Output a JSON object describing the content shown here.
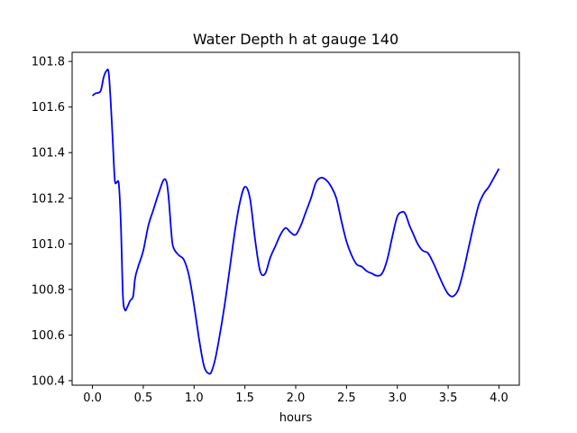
{
  "chart_data": {
    "type": "line",
    "title": "Water Depth h at gauge 140",
    "xlabel": "hours",
    "ylabel": "",
    "xlim": [
      -0.2,
      4.2
    ],
    "ylim": [
      100.38,
      101.84
    ],
    "xticks": [
      "0.0",
      "0.5",
      "1.0",
      "1.5",
      "2.0",
      "2.5",
      "3.0",
      "3.5",
      "4.0"
    ],
    "yticks": [
      "100.4",
      "100.6",
      "100.8",
      "101.0",
      "101.2",
      "101.4",
      "101.6",
      "101.8"
    ],
    "grid": false,
    "line_color": "#0000ff",
    "series": [
      {
        "x": [
          0.0,
          0.03,
          0.08,
          0.11,
          0.14,
          0.16,
          0.18,
          0.2,
          0.22,
          0.24,
          0.26,
          0.28,
          0.3,
          0.32,
          0.34,
          0.37,
          0.4,
          0.42,
          0.45,
          0.5,
          0.55,
          0.6,
          0.65,
          0.7,
          0.73,
          0.75,
          0.78,
          0.8,
          0.85,
          0.9,
          0.95,
          1.0,
          1.05,
          1.1,
          1.15,
          1.18,
          1.22,
          1.3,
          1.4,
          1.45,
          1.5,
          1.55,
          1.6,
          1.65,
          1.7,
          1.75,
          1.8,
          1.85,
          1.9,
          1.95,
          2.0,
          2.05,
          2.1,
          2.15,
          2.2,
          2.25,
          2.3,
          2.35,
          2.4,
          2.45,
          2.5,
          2.55,
          2.6,
          2.65,
          2.7,
          2.75,
          2.8,
          2.85,
          2.9,
          2.95,
          3.0,
          3.05,
          3.08,
          3.12,
          3.15,
          3.2,
          3.25,
          3.3,
          3.35,
          3.4,
          3.45,
          3.5,
          3.55,
          3.6,
          3.65,
          3.7,
          3.75,
          3.8,
          3.85,
          3.9,
          3.95,
          4.0
        ],
        "y": [
          101.65,
          101.66,
          101.67,
          101.73,
          101.76,
          101.75,
          101.62,
          101.45,
          101.28,
          101.27,
          101.26,
          101.08,
          100.77,
          100.71,
          100.72,
          100.75,
          100.77,
          100.85,
          100.9,
          100.97,
          101.08,
          101.15,
          101.22,
          101.28,
          101.27,
          101.2,
          101.03,
          100.98,
          100.95,
          100.93,
          100.86,
          100.73,
          100.58,
          100.46,
          100.43,
          100.45,
          100.52,
          100.73,
          101.05,
          101.18,
          101.25,
          101.2,
          101.02,
          100.88,
          100.87,
          100.94,
          100.99,
          101.04,
          101.07,
          101.05,
          101.04,
          101.08,
          101.14,
          101.2,
          101.27,
          101.29,
          101.28,
          101.25,
          101.2,
          101.1,
          101.01,
          100.95,
          100.91,
          100.9,
          100.88,
          100.87,
          100.86,
          100.87,
          100.93,
          101.03,
          101.12,
          101.14,
          101.13,
          101.08,
          101.05,
          101.0,
          100.97,
          100.96,
          100.92,
          100.87,
          100.82,
          100.78,
          100.77,
          100.8,
          100.88,
          100.98,
          101.08,
          101.17,
          101.22,
          101.25,
          101.29,
          101.33
        ]
      }
    ]
  }
}
